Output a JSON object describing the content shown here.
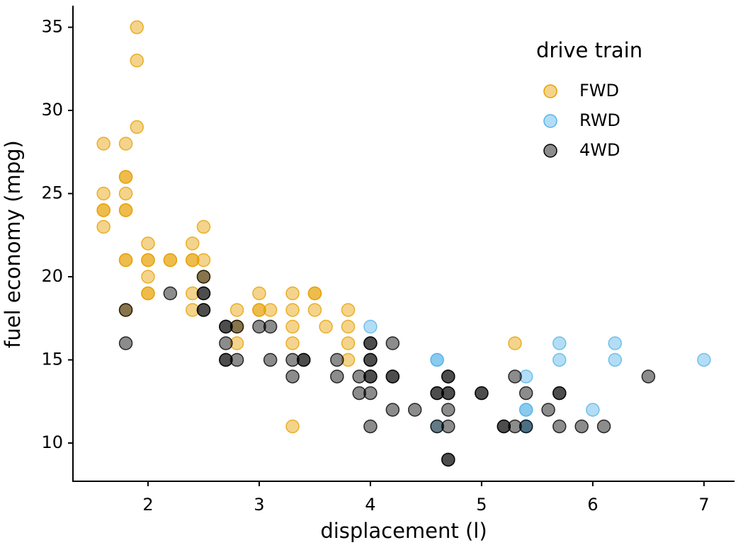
{
  "chart_data": {
    "type": "scatter",
    "x_label": "displacement (l)",
    "y_label": "fuel economy (mpg)",
    "legend_title": "drive train",
    "legend_position": "top-right",
    "xlim": [
      1.325,
      7.275
    ],
    "ylim": [
      7.7,
      36.3
    ],
    "xticks": [
      2,
      3,
      4,
      5,
      6,
      7
    ],
    "yticks": [
      10,
      15,
      20,
      25,
      30,
      35
    ],
    "grid": false,
    "series": [
      {
        "name": "FWD",
        "color": "#E69F00",
        "x": [
          1.6,
          1.6,
          1.6,
          1.6,
          1.6,
          1.8,
          1.8,
          1.8,
          1.8,
          1.8,
          1.8,
          1.8,
          1.8,
          1.8,
          1.9,
          1.9,
          1.9,
          2.0,
          2.0,
          2.0,
          2.0,
          2.0,
          2.0,
          2.2,
          2.2,
          2.4,
          2.4,
          2.4,
          2.4,
          2.4,
          2.5,
          2.5,
          2.5,
          2.8,
          2.8,
          2.8,
          3.0,
          3.0,
          3.0,
          3.1,
          3.3,
          3.3,
          3.3,
          3.3,
          3.3,
          3.5,
          3.5,
          3.5,
          3.6,
          3.8,
          3.8,
          3.8,
          3.8,
          5.3
        ],
        "values": [
          28,
          25,
          24,
          24,
          23,
          28,
          26,
          26,
          25,
          24,
          24,
          21,
          21,
          18,
          35,
          33,
          29,
          22,
          21,
          21,
          20,
          19,
          19,
          21,
          21,
          22,
          21,
          21,
          19,
          18,
          23,
          21,
          20,
          18,
          17,
          16,
          19,
          18,
          18,
          18,
          19,
          18,
          17,
          16,
          11,
          19,
          19,
          18,
          17,
          18,
          17,
          16,
          15,
          16
        ]
      },
      {
        "name": "RWD",
        "color": "#56B4E9",
        "x": [
          4.0,
          4.6,
          4.6,
          4.6,
          5.4,
          5.4,
          5.4,
          5.4,
          5.4,
          5.7,
          5.7,
          6.0,
          6.2,
          6.2,
          7.0
        ],
        "values": [
          17,
          15,
          15,
          11,
          14,
          12,
          12,
          11,
          11,
          16,
          15,
          12,
          16,
          15,
          15
        ]
      },
      {
        "name": "4WD",
        "color": "#000000",
        "x": [
          1.8,
          1.8,
          2.2,
          2.5,
          2.5,
          2.5,
          2.5,
          2.5,
          2.7,
          2.7,
          2.7,
          2.7,
          2.7,
          2.8,
          2.8,
          3.0,
          3.1,
          3.1,
          3.3,
          3.3,
          3.4,
          3.4,
          3.7,
          3.7,
          3.9,
          3.9,
          4.0,
          4.0,
          4.0,
          4.0,
          4.0,
          4.0,
          4.0,
          4.0,
          4.2,
          4.2,
          4.2,
          4.2,
          4.4,
          4.6,
          4.6,
          4.6,
          4.7,
          4.7,
          4.7,
          4.7,
          4.7,
          4.7,
          4.7,
          4.7,
          5.0,
          5.0,
          5.2,
          5.2,
          5.3,
          5.3,
          5.4,
          5.4,
          5.6,
          5.7,
          5.7,
          5.7,
          5.9,
          6.1,
          6.5
        ],
        "values": [
          18,
          16,
          19,
          20,
          19,
          19,
          18,
          18,
          17,
          17,
          16,
          15,
          15,
          17,
          15,
          17,
          17,
          15,
          15,
          14,
          15,
          15,
          15,
          14,
          14,
          13,
          16,
          16,
          15,
          15,
          14,
          14,
          13,
          11,
          16,
          14,
          14,
          12,
          12,
          13,
          13,
          11,
          14,
          14,
          13,
          13,
          12,
          11,
          9,
          9,
          13,
          13,
          11,
          11,
          14,
          11,
          13,
          11,
          12,
          13,
          13,
          11,
          11,
          11,
          14
        ]
      }
    ]
  }
}
